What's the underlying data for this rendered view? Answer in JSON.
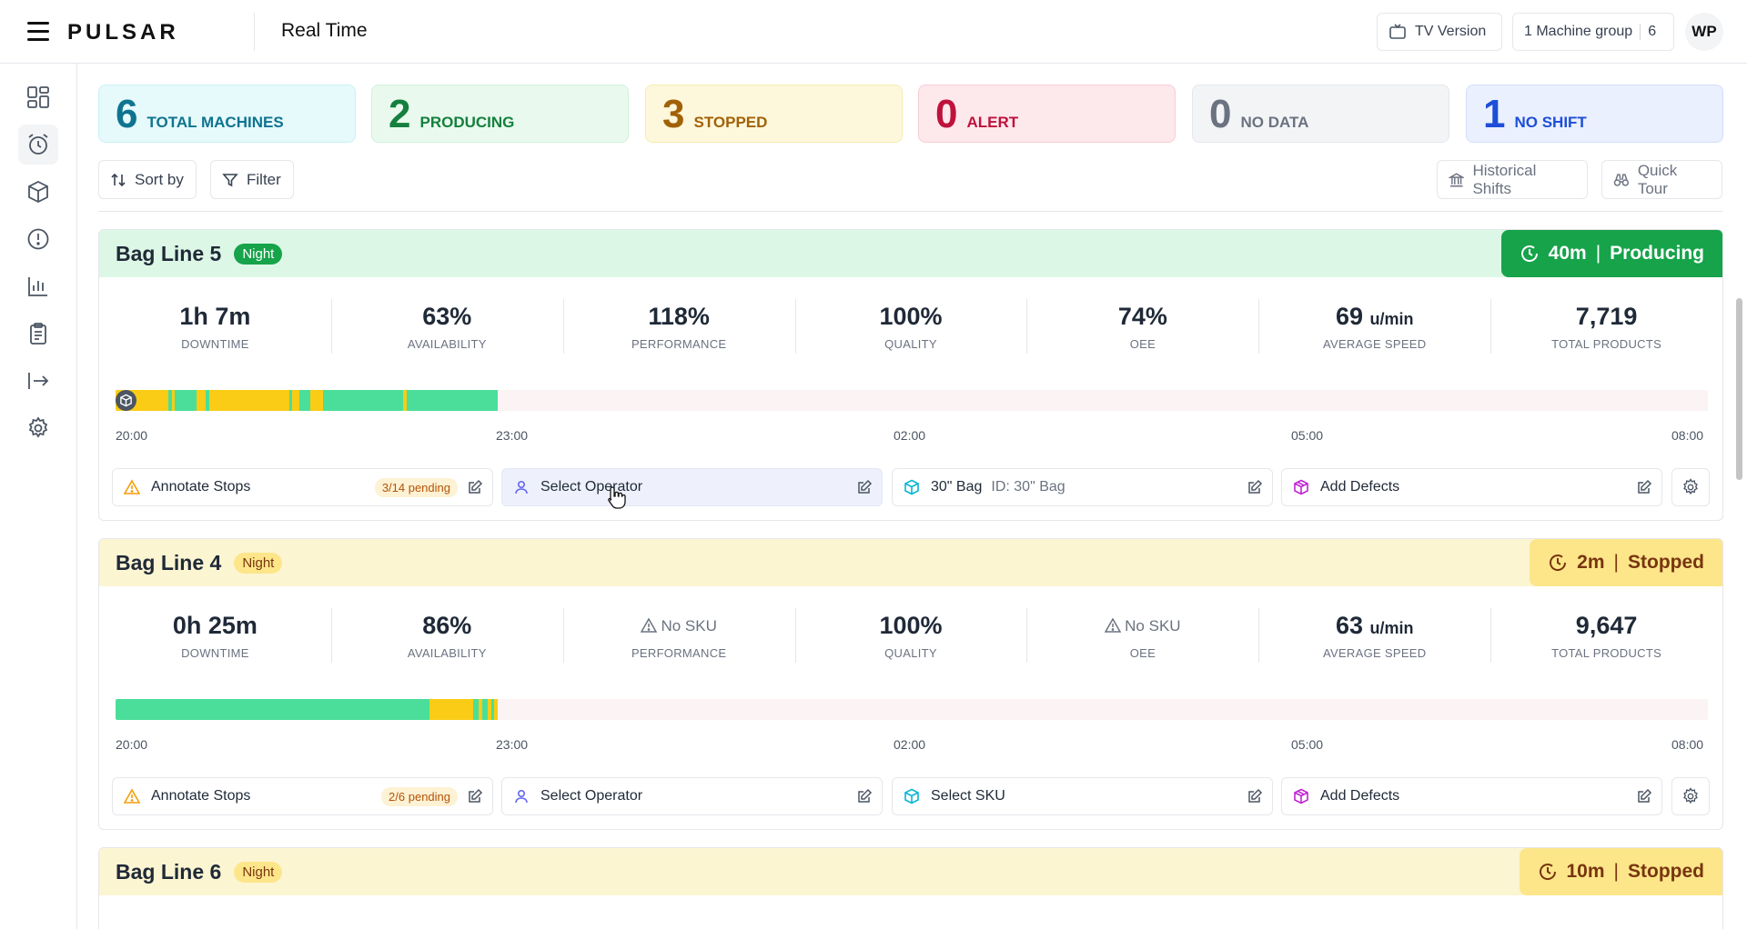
{
  "header": {
    "logo": "PULSAR",
    "title": "Real Time",
    "tv_label": "TV Version",
    "machine_group_label": "1 Machine group",
    "machine_group_count": "6",
    "avatar": "WP"
  },
  "sidebar": {
    "items": [
      {
        "name": "dashboard",
        "icon": "grid-icon",
        "active": false
      },
      {
        "name": "real-time",
        "icon": "alarm-clock-icon",
        "active": true
      },
      {
        "name": "products",
        "icon": "cube-icon",
        "active": false
      },
      {
        "name": "alerts",
        "icon": "alert-circle-icon",
        "active": false
      },
      {
        "name": "reports",
        "icon": "bar-chart-icon",
        "active": false
      },
      {
        "name": "checklists",
        "icon": "clipboard-icon",
        "active": false
      },
      {
        "name": "export",
        "icon": "arrow-right-bar-icon",
        "active": false
      },
      {
        "name": "settings",
        "icon": "gear-icon",
        "active": false
      }
    ]
  },
  "summary": {
    "total": {
      "value": "6",
      "label": "TOTAL MACHINES"
    },
    "producing": {
      "value": "2",
      "label": "PRODUCING"
    },
    "stopped": {
      "value": "3",
      "label": "STOPPED"
    },
    "alert": {
      "value": "0",
      "label": "ALERT"
    },
    "no_data": {
      "value": "0",
      "label": "NO DATA"
    },
    "no_shift": {
      "value": "1",
      "label": "NO SHIFT"
    }
  },
  "toolbar": {
    "sort_label": "Sort by",
    "filter_label": "Filter",
    "historical_label": "Historical Shifts",
    "tour_label": "Quick Tour"
  },
  "timeline_ticks": [
    "20:00",
    "23:00",
    "02:00",
    "05:00",
    "08:00"
  ],
  "colors": {
    "producing": "#4ade9a",
    "stopped": "#facc15",
    "accent_green": "#16a34a"
  },
  "lines": [
    {
      "name": "Bag Line 5",
      "shift": "Night",
      "state_time": "40m",
      "state": "Producing",
      "metrics": {
        "downtime": {
          "value": "1h 7m",
          "label": "DOWNTIME"
        },
        "availability": {
          "value": "63%",
          "label": "AVAILABILITY"
        },
        "performance": {
          "value": "118%",
          "label": "PERFORMANCE"
        },
        "quality": {
          "value": "100%",
          "label": "QUALITY"
        },
        "oee": {
          "value": "74%",
          "label": "OEE"
        },
        "speed": {
          "value": "69",
          "unit": "u/min",
          "label": "AVERAGE SPEED"
        },
        "total": {
          "value": "7,719",
          "label": "TOTAL PRODUCTS"
        }
      },
      "actions": {
        "annotate": "Annotate Stops",
        "pending": "3/14 pending",
        "operator": "Select Operator",
        "sku": "30\" Bag",
        "sku_id": "ID: 30\" Bag",
        "defects": "Add Defects"
      }
    },
    {
      "name": "Bag Line 4",
      "shift": "Night",
      "state_time": "2m",
      "state": "Stopped",
      "metrics": {
        "downtime": {
          "value": "0h 25m",
          "label": "DOWNTIME"
        },
        "availability": {
          "value": "86%",
          "label": "AVAILABILITY"
        },
        "performance": {
          "value": "No SKU",
          "label": "PERFORMANCE"
        },
        "quality": {
          "value": "100%",
          "label": "QUALITY"
        },
        "oee": {
          "value": "No SKU",
          "label": "OEE"
        },
        "speed": {
          "value": "63",
          "unit": "u/min",
          "label": "AVERAGE SPEED"
        },
        "total": {
          "value": "9,647",
          "label": "TOTAL PRODUCTS"
        }
      },
      "actions": {
        "annotate": "Annotate Stops",
        "pending": "2/6 pending",
        "operator": "Select Operator",
        "sku": "Select SKU",
        "defects": "Add Defects"
      }
    },
    {
      "name": "Bag Line 6",
      "shift": "Night",
      "state_time": "10m",
      "state": "Stopped"
    }
  ]
}
